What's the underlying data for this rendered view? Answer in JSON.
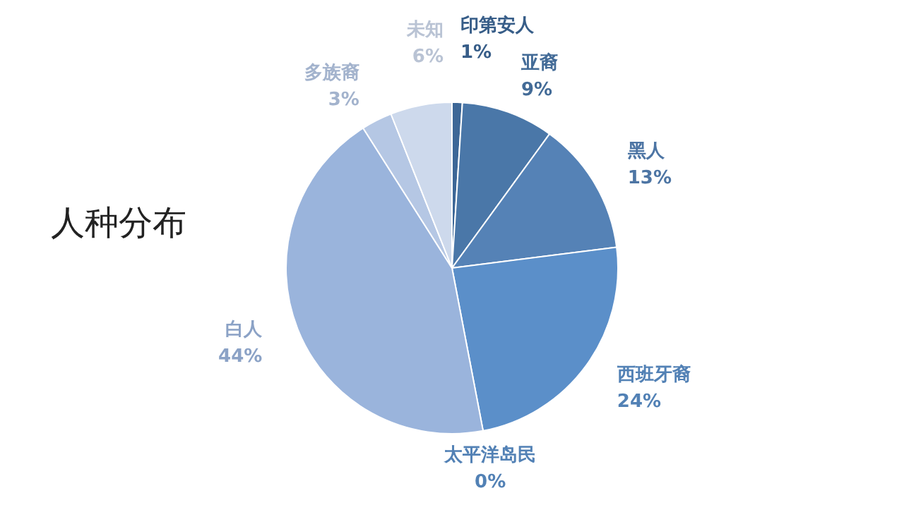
{
  "chart_data": {
    "type": "pie",
    "title": "人种分布",
    "categories": [
      "印第安人",
      "亚裔",
      "黑人",
      "西班牙裔",
      "太平洋岛民",
      "白人",
      "多族裔",
      "未知"
    ],
    "values": [
      1,
      9,
      13,
      24,
      0,
      44,
      3,
      6
    ],
    "value_labels": [
      "1%",
      "9%",
      "13%",
      "24%",
      "0%",
      "44%",
      "3%",
      "6%"
    ],
    "colors": [
      "#3d6797",
      "#4a77a8",
      "#5582b6",
      "#5b8fc9",
      "#5b8fc9",
      "#9ab4dc",
      "#b5c7e4",
      "#cdd9ec"
    ],
    "legend": false
  }
}
